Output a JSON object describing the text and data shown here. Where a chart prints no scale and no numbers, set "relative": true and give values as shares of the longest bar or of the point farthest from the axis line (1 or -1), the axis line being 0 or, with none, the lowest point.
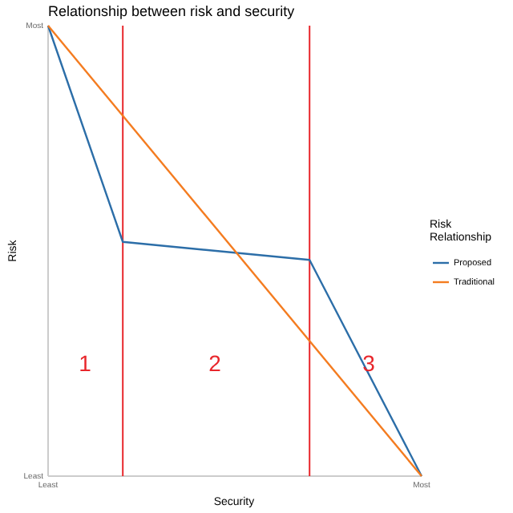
{
  "chart_data": {
    "type": "line",
    "title": "Relationship between risk and security",
    "xlabel": "Security",
    "ylabel": "Risk",
    "legend_title": "Risk Relationship",
    "relative": true,
    "categories": [
      "Least",
      null,
      null,
      null,
      null,
      null,
      null,
      null,
      null,
      null,
      "Most"
    ],
    "series": [
      {
        "name": "Proposed",
        "color": "#2c6ea8",
        "values": [
          1,
          null,
          0.52,
          null,
          null,
          null,
          null,
          0.48,
          null,
          null,
          0
        ]
      },
      {
        "name": "Traditional",
        "color": "#f47c20",
        "values": [
          1,
          null,
          null,
          null,
          null,
          null,
          null,
          null,
          null,
          null,
          0
        ]
      }
    ],
    "annotations": [
      "Most",
      "Least",
      "1",
      "2",
      "3"
    ],
    "legend": "right"
  }
}
